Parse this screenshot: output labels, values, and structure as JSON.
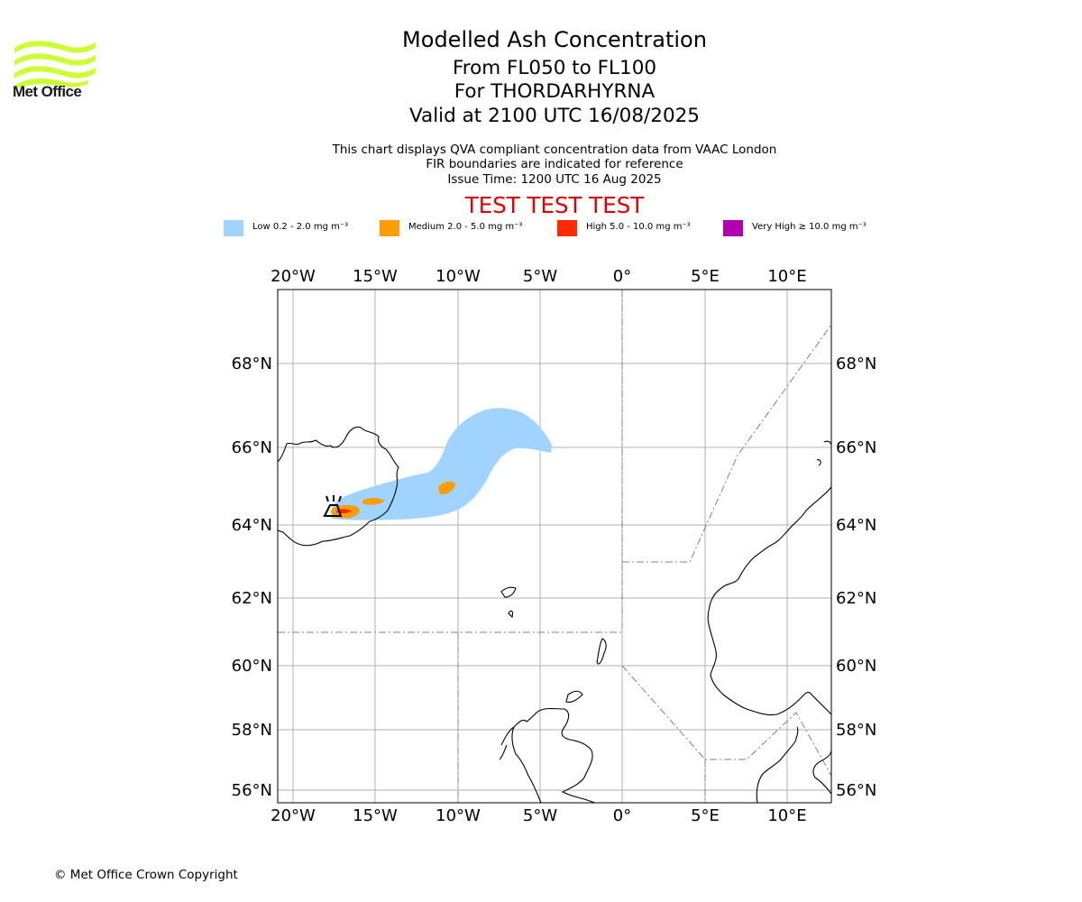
{
  "logo": {
    "text": "Met Office",
    "color": "#ccff33"
  },
  "header": {
    "title": "Modelled Ash Concentration",
    "levels": "From FL050 to FL100",
    "volcano": "For THORDARHYRNA",
    "valid": "Valid at 2100 UTC 16/08/2025",
    "description": "This chart displays QVA compliant concentration data from VAAC London",
    "fir_note": "FIR boundaries are indicated for reference",
    "issue_time": "Issue Time: 1200 UTC 16 Aug 2025",
    "test_banner": "TEST TEST TEST",
    "test_color": "#e00000"
  },
  "legend": [
    {
      "label": "Low 0.2 - 2.0 mg m⁻³",
      "color": "#a0d4ff"
    },
    {
      "label": "Medium 2.0 - 5.0 mg m⁻³",
      "color": "#ff9c00"
    },
    {
      "label": "High 5.0 - 10.0 mg m⁻³",
      "color": "#ff2a00"
    },
    {
      "label": "Very High ≥ 10.0 mg m⁻³",
      "color": "#b000b0"
    }
  ],
  "map": {
    "lon_labels": [
      "20°W",
      "15°W",
      "10°W",
      "5°W",
      "0°",
      "5°E",
      "10°E"
    ],
    "lat_labels": [
      "68°N",
      "66°N",
      "64°N",
      "62°N",
      "60°N",
      "58°N",
      "56°N"
    ],
    "volcano_icon": "volcano-icon"
  },
  "footer": {
    "copyright": "© Met Office Crown Copyright"
  }
}
